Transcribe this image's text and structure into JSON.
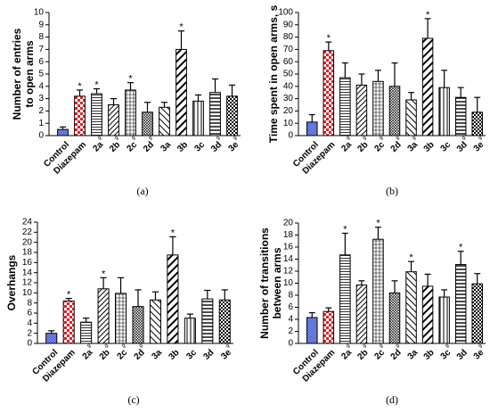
{
  "chart_data": [
    {
      "type": "bar",
      "panel_label": "(a)",
      "ylabel": [
        "Number of entries",
        "to open arms"
      ],
      "categories": [
        "Control",
        "Diazepam",
        "2a",
        "2b",
        "2c",
        "2d",
        "3a",
        "3b",
        "3c",
        "3d",
        "3e"
      ],
      "category_superscripts": [
        null,
        null,
        "g",
        "g",
        "g",
        "g",
        null,
        null,
        null,
        "g",
        "g"
      ],
      "values": [
        0.5,
        3.2,
        3.4,
        2.5,
        3.7,
        1.9,
        2.3,
        7.0,
        2.8,
        3.5,
        3.2
      ],
      "errors": [
        0.2,
        0.5,
        0.4,
        0.5,
        0.6,
        0.8,
        0.4,
        1.5,
        0.5,
        1.1,
        0.9
      ],
      "significance": [
        null,
        "*",
        "*",
        null,
        "*",
        null,
        null,
        "*",
        null,
        null,
        null
      ],
      "ylim": [
        0,
        10
      ],
      "yticks": [
        0,
        1,
        2,
        3,
        4,
        5,
        6,
        7,
        8,
        9,
        10
      ]
    },
    {
      "type": "bar",
      "panel_label": "(b)",
      "ylabel": [
        "Time spent in open arms, s"
      ],
      "categories": [
        "Control",
        "Diazepam",
        "2a",
        "2b",
        "2c",
        "2d",
        "3a",
        "3b",
        "3c",
        "3d",
        "3e"
      ],
      "category_superscripts": [
        null,
        null,
        "g",
        "g",
        "g",
        "g",
        "g",
        null,
        null,
        "g",
        "g"
      ],
      "values": [
        11,
        69,
        47,
        41,
        44,
        40,
        29,
        79,
        39,
        31,
        19
      ],
      "errors": [
        6,
        7,
        12,
        9,
        9,
        19,
        6,
        16,
        14,
        8,
        12
      ],
      "significance": [
        null,
        "*",
        null,
        null,
        null,
        null,
        null,
        "*",
        null,
        null,
        null
      ],
      "ylim": [
        0,
        100
      ],
      "yticks": [
        0,
        10,
        20,
        30,
        40,
        50,
        60,
        70,
        80,
        90,
        100
      ]
    },
    {
      "type": "bar",
      "panel_label": "(c)",
      "ylabel": [
        "Overhangs"
      ],
      "categories": [
        "Control",
        "Diazepam",
        "2a",
        "2b",
        "2c",
        "2d",
        "3a",
        "3b",
        "3c",
        "3d",
        "3e"
      ],
      "category_superscripts": [
        null,
        null,
        "g",
        "g",
        "g",
        "g",
        null,
        null,
        null,
        null,
        "g"
      ],
      "values": [
        2.0,
        8.4,
        4.2,
        10.8,
        9.9,
        7.3,
        8.6,
        17.5,
        5.0,
        8.8,
        8.6
      ],
      "errors": [
        0.5,
        0.5,
        0.8,
        2.2,
        3.1,
        3.3,
        1.6,
        3.6,
        0.8,
        1.7,
        2.0
      ],
      "significance": [
        null,
        "*",
        null,
        "*",
        null,
        null,
        null,
        "*",
        null,
        null,
        null
      ],
      "ylim": [
        0,
        24
      ],
      "yticks": [
        0,
        2,
        4,
        6,
        8,
        10,
        12,
        14,
        16,
        18,
        20,
        22,
        24
      ]
    },
    {
      "type": "bar",
      "panel_label": "(d)",
      "ylabel": [
        "Number of transitions",
        "between arms"
      ],
      "categories": [
        "Control",
        "Diazepam",
        "2a",
        "2b",
        "2c",
        "2d",
        "3a",
        "3b",
        "3c",
        "3d",
        "3e"
      ],
      "category_superscripts": [
        null,
        null,
        "g",
        "g",
        "g",
        "g",
        null,
        null,
        "g",
        null,
        "g"
      ],
      "values": [
        4.3,
        5.3,
        14.7,
        9.7,
        17.3,
        8.4,
        11.9,
        9.5,
        7.7,
        13.1,
        9.9
      ],
      "errors": [
        0.8,
        0.6,
        3.6,
        0.7,
        2.0,
        2.0,
        1.7,
        2.0,
        1.2,
        2.2,
        1.7
      ],
      "significance": [
        null,
        null,
        "*",
        null,
        "*",
        null,
        "*",
        null,
        null,
        "*",
        null
      ],
      "ylim": [
        0,
        20
      ],
      "yticks": [
        0,
        2,
        4,
        6,
        8,
        10,
        12,
        14,
        16,
        18,
        20
      ]
    }
  ]
}
